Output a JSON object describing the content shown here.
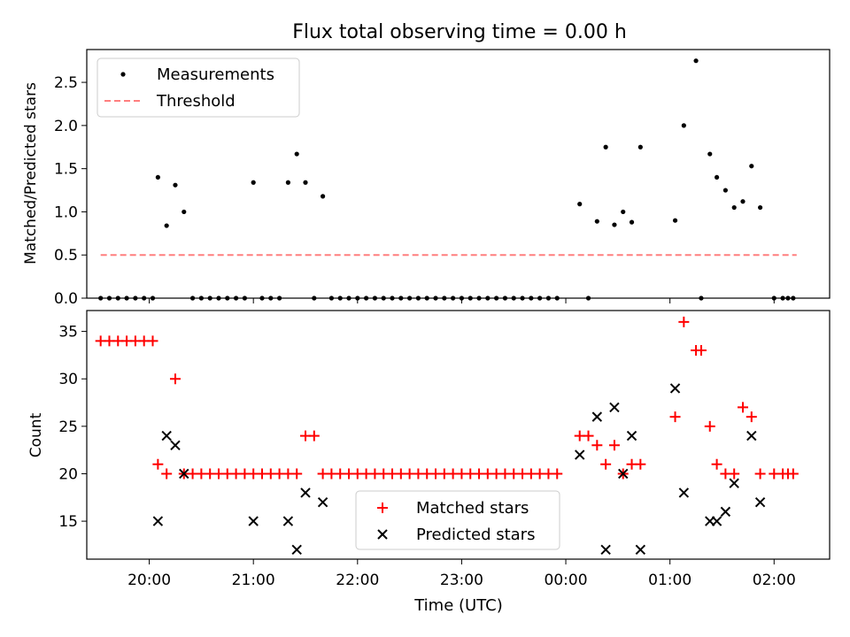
{
  "chart_data": [
    {
      "type": "scatter",
      "title": "Flux total observing time = 0.00 h",
      "xlabel": "",
      "ylabel": "Matched/Predicted stars",
      "ylim": [
        0,
        2.88
      ],
      "yticks": [
        0.0,
        0.5,
        1.0,
        1.5,
        2.0,
        2.5
      ],
      "ytick_labels": [
        "0.0",
        "0.5",
        "1.0",
        "1.5",
        "2.0",
        "2.5"
      ],
      "xlim": [
        "19:24",
        "02:32"
      ],
      "xticks": [
        "20:00",
        "21:00",
        "22:00",
        "23:00",
        "00:00",
        "01:00",
        "02:00"
      ],
      "xtick_labels_shown": false,
      "legend_position": "upper-left",
      "legend": [
        "Measurements",
        "Threshold"
      ],
      "colors": {
        "measurements": "#000000",
        "threshold": "#ff7f7f"
      },
      "threshold": {
        "value": 0.5,
        "x_start": "19:32",
        "x_end": "02:13",
        "style": "dashed"
      },
      "series": [
        {
          "name": "Measurements",
          "marker": "dot",
          "x": [
            "19:32",
            "19:37",
            "19:42",
            "19:47",
            "19:52",
            "19:57",
            "20:02",
            "20:05",
            "20:10",
            "20:15",
            "20:20",
            "20:25",
            "20:30",
            "20:35",
            "20:40",
            "20:45",
            "20:50",
            "20:55",
            "21:00",
            "21:05",
            "21:10",
            "21:15",
            "21:20",
            "21:25",
            "21:30",
            "21:35",
            "21:40",
            "21:45",
            "21:50",
            "21:55",
            "22:00",
            "22:05",
            "22:10",
            "22:15",
            "22:20",
            "22:25",
            "22:30",
            "22:35",
            "22:40",
            "22:45",
            "22:50",
            "22:55",
            "23:00",
            "23:05",
            "23:10",
            "23:15",
            "23:20",
            "23:25",
            "23:30",
            "23:35",
            "23:40",
            "23:45",
            "23:50",
            "23:55",
            "00:08",
            "00:13",
            "00:18",
            "00:23",
            "00:28",
            "00:33",
            "00:38",
            "00:43",
            "01:03",
            "01:08",
            "01:15",
            "01:18",
            "01:23",
            "01:27",
            "01:32",
            "01:37",
            "01:42",
            "01:47",
            "01:52",
            "02:00",
            "02:05",
            "02:08",
            "02:11"
          ],
          "y": [
            0,
            0,
            0,
            0,
            0,
            0,
            0,
            1.4,
            0.84,
            1.31,
            1.0,
            0,
            0,
            0,
            0,
            0,
            0,
            0,
            1.34,
            0,
            0,
            0,
            1.34,
            1.67,
            1.34,
            0,
            1.18,
            0,
            0,
            0,
            0,
            0,
            0,
            0,
            0,
            0,
            0,
            0,
            0,
            0,
            0,
            0,
            0,
            0,
            0,
            0,
            0,
            0,
            0,
            0,
            0,
            0,
            0,
            0,
            1.09,
            0,
            0.89,
            1.75,
            0.85,
            1.0,
            0.88,
            1.75,
            0.9,
            2.0,
            2.75,
            0,
            1.67,
            1.4,
            1.25,
            1.05,
            1.12,
            1.53,
            1.05,
            0,
            0,
            0,
            0
          ]
        }
      ]
    },
    {
      "type": "scatter",
      "title": "",
      "xlabel": "Time (UTC)",
      "ylabel": "Count",
      "ylim": [
        11,
        37.2
      ],
      "yticks": [
        15,
        20,
        25,
        30,
        35
      ],
      "ytick_labels": [
        "15",
        "20",
        "25",
        "30",
        "35"
      ],
      "xlim": [
        "19:24",
        "02:32"
      ],
      "xticks": [
        "20:00",
        "21:00",
        "22:00",
        "23:00",
        "00:00",
        "01:00",
        "02:00"
      ],
      "xtick_labels": [
        "20:00",
        "21:00",
        "22:00",
        "23:00",
        "00:00",
        "01:00",
        "02:00"
      ],
      "legend_position": "lower-center",
      "legend": [
        "Matched stars",
        "Predicted stars"
      ],
      "colors": {
        "matched": "#ff0000",
        "predicted": "#000000"
      },
      "series": [
        {
          "name": "Matched stars",
          "marker": "plus",
          "x": [
            "19:32",
            "19:37",
            "19:42",
            "19:47",
            "19:52",
            "19:57",
            "20:02",
            "20:05",
            "20:10",
            "20:15",
            "20:20",
            "20:25",
            "20:30",
            "20:35",
            "20:40",
            "20:45",
            "20:50",
            "20:55",
            "21:00",
            "21:05",
            "21:10",
            "21:15",
            "21:20",
            "21:25",
            "21:30",
            "21:35",
            "21:40",
            "21:45",
            "21:50",
            "21:55",
            "22:00",
            "22:05",
            "22:10",
            "22:15",
            "22:20",
            "22:25",
            "22:30",
            "22:35",
            "22:40",
            "22:45",
            "22:50",
            "22:55",
            "23:00",
            "23:05",
            "23:10",
            "23:15",
            "23:20",
            "23:25",
            "23:30",
            "23:35",
            "23:40",
            "23:45",
            "23:50",
            "23:55",
            "00:08",
            "00:13",
            "00:18",
            "00:23",
            "00:28",
            "00:33",
            "00:38",
            "00:43",
            "01:03",
            "01:08",
            "01:15",
            "01:18",
            "01:23",
            "01:27",
            "01:32",
            "01:37",
            "01:42",
            "01:47",
            "01:52",
            "02:00",
            "02:05",
            "02:08",
            "02:11"
          ],
          "y": [
            34,
            34,
            34,
            34,
            34,
            34,
            34,
            21,
            20,
            30,
            20,
            20,
            20,
            20,
            20,
            20,
            20,
            20,
            20,
            20,
            20,
            20,
            20,
            20,
            24,
            24,
            20,
            20,
            20,
            20,
            20,
            20,
            20,
            20,
            20,
            20,
            20,
            20,
            20,
            20,
            20,
            20,
            20,
            20,
            20,
            20,
            20,
            20,
            20,
            20,
            20,
            20,
            20,
            20,
            24,
            24,
            23,
            21,
            23,
            20,
            21,
            21,
            26,
            36,
            33,
            33,
            25,
            21,
            20,
            20,
            27,
            26,
            20,
            20,
            20,
            20,
            20
          ]
        },
        {
          "name": "Predicted stars",
          "marker": "x",
          "x": [
            "20:05",
            "20:10",
            "20:15",
            "20:20",
            "21:00",
            "21:20",
            "21:25",
            "21:30",
            "21:40",
            "00:08",
            "00:18",
            "00:23",
            "00:28",
            "00:33",
            "00:38",
            "00:43",
            "01:03",
            "01:08",
            "01:23",
            "01:27",
            "01:32",
            "01:37",
            "01:47",
            "01:52"
          ],
          "y": [
            15,
            24,
            23,
            20,
            15,
            15,
            12,
            18,
            17,
            22,
            26,
            12,
            27,
            20,
            24,
            12,
            29,
            18,
            15,
            15,
            16,
            19,
            24,
            17
          ]
        }
      ]
    }
  ]
}
